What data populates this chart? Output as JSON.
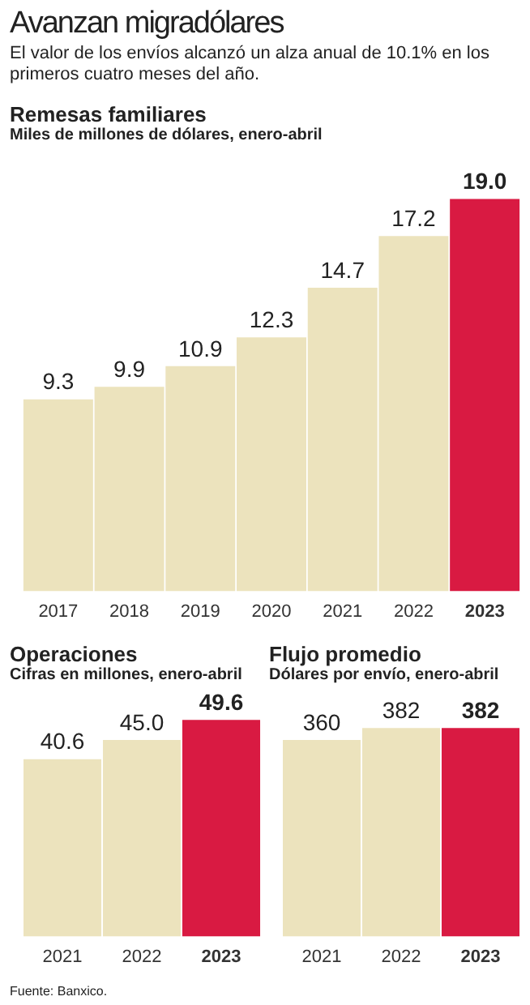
{
  "chart_data": [
    {
      "type": "other",
      "title": "Avanzan migradólares",
      "subtitle": "El valor de los envíos alcanzó un alza anual de 10.1% en los primeros cuatro meses del año.",
      "annotations": [
        "Fuente: Banxico."
      ]
    },
    {
      "type": "bar",
      "title": "Remesas familiares",
      "subtitle": "Miles de millones de dólares, enero-abril",
      "categories": [
        "2017",
        "2018",
        "2019",
        "2020",
        "2021",
        "2022",
        "2023"
      ],
      "values": [
        9.3,
        9.9,
        10.9,
        12.3,
        14.7,
        17.2,
        19.0
      ],
      "value_labels": [
        "9.3",
        "9.9",
        "10.9",
        "12.3",
        "14.7",
        "17.2",
        "19.0"
      ],
      "colors": [
        "#ece3bd",
        "#ece3bd",
        "#ece3bd",
        "#ece3bd",
        "#ece3bd",
        "#ece3bd",
        "#d91a42"
      ],
      "grid": false,
      "legend": false
    },
    {
      "type": "bar",
      "title": "Operaciones",
      "subtitle": "Cifras en millones, enero-abril",
      "categories": [
        "2021",
        "2022",
        "2023"
      ],
      "values": [
        40.6,
        45.0,
        49.6
      ],
      "value_labels": [
        "40.6",
        "45.0",
        "49.6"
      ],
      "colors": [
        "#ece3bd",
        "#ece3bd",
        "#d91a42"
      ],
      "grid": false,
      "legend": false
    },
    {
      "type": "bar",
      "title": "Flujo promedio",
      "subtitle": "Dólares por envío, enero-abril",
      "categories": [
        "2021",
        "2022",
        "2023"
      ],
      "values": [
        360,
        382,
        382
      ],
      "value_labels": [
        "360",
        "382",
        "382"
      ],
      "colors": [
        "#ece3bd",
        "#ece3bd",
        "#d91a42"
      ],
      "grid": false,
      "legend": false
    }
  ]
}
